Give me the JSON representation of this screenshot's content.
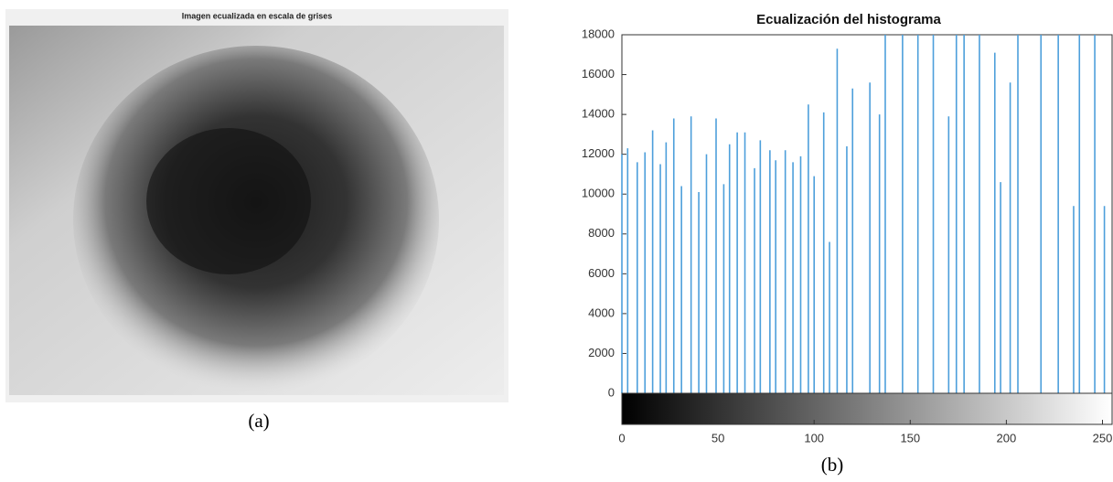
{
  "figure_a": {
    "title": "Imagen ecualizada en escala de grises",
    "caption": "(a)"
  },
  "chart_data": {
    "type": "stem",
    "title": "Ecualización del histograma",
    "color": "#4d9fdb",
    "x": [
      0,
      3,
      8,
      12,
      16,
      20,
      23,
      27,
      31,
      36,
      40,
      44,
      49,
      53,
      56,
      60,
      64,
      69,
      72,
      77,
      80,
      85,
      89,
      93,
      97,
      100,
      105,
      108,
      112,
      117,
      120,
      129,
      134,
      137,
      146,
      154,
      162,
      170,
      174,
      178,
      186,
      194,
      197,
      202,
      206,
      218,
      227,
      235,
      238,
      246,
      251
    ],
    "values": [
      12000,
      12300,
      11600,
      12100,
      13200,
      11500,
      12600,
      13800,
      10400,
      13900,
      10100,
      12000,
      13800,
      10500,
      12500,
      13100,
      13100,
      11300,
      12700,
      12200,
      11700,
      12200,
      11600,
      11900,
      14500,
      10900,
      14100,
      7600,
      17300,
      12400,
      15300,
      15600,
      14000,
      18000,
      18000,
      18000,
      18000,
      13900,
      18000,
      18000,
      18000,
      17100,
      10600,
      15600,
      18000,
      18000,
      18000,
      9400,
      18000,
      18000,
      9400
    ],
    "xlim": [
      0,
      255
    ],
    "xticks": [
      0,
      50,
      100,
      150,
      200,
      250
    ],
    "ylim": [
      0,
      18000
    ],
    "yticks": [
      0,
      2000,
      4000,
      6000,
      8000,
      10000,
      12000,
      14000,
      16000,
      18000
    ],
    "colorbar": true
  },
  "caption_b": "(b)"
}
